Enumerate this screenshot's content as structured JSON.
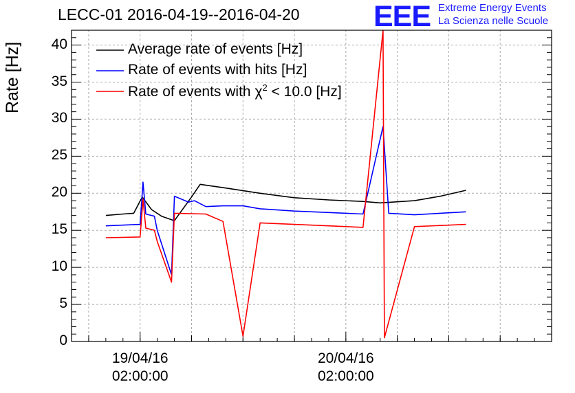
{
  "chart_data": {
    "type": "line",
    "title": "LECC-01 2016-04-19--2016-04-20",
    "ylabel": "Rate [Hz]",
    "xlabel": "",
    "ylim": [
      0,
      42
    ],
    "y_ticks": [
      "0",
      "5",
      "10",
      "15",
      "20",
      "25",
      "30",
      "35",
      "40"
    ],
    "x_ticks": [
      {
        "date": "19/04/16",
        "time": "02:00:00"
      },
      {
        "date": "20/04/16",
        "time": "02:00:00"
      }
    ],
    "x_range": [
      "2016-04-18 18:00",
      "2016-04-21 02:00"
    ],
    "grid": true,
    "legend_position": "top-left",
    "series": [
      {
        "name": "Average rate of events [Hz]",
        "color": "#000000",
        "points": [
          [
            "2016-04-18 22:00",
            17.0
          ],
          [
            "2016-04-19 00:00",
            17.2
          ],
          [
            "2016-04-19 01:15",
            17.3
          ],
          [
            "2016-04-19 02:15",
            19.5
          ],
          [
            "2016-04-19 03:20",
            17.8
          ],
          [
            "2016-04-19 04:30",
            16.9
          ],
          [
            "2016-04-19 06:00",
            16.3
          ],
          [
            "2016-04-19 08:00",
            19.5
          ],
          [
            "2016-04-19 09:00",
            21.2
          ],
          [
            "2016-04-19 12:00",
            20.7
          ],
          [
            "2016-04-19 16:00",
            20.0
          ],
          [
            "2016-04-19 20:00",
            19.4
          ],
          [
            "2016-04-20 00:00",
            19.1
          ],
          [
            "2016-04-20 04:00",
            18.9
          ],
          [
            "2016-04-20 06:00",
            18.7
          ],
          [
            "2016-04-20 10:00",
            19.0
          ],
          [
            "2016-04-20 13:00",
            19.6
          ],
          [
            "2016-04-20 16:00",
            20.4
          ]
        ]
      },
      {
        "name": "Rate of events with hits [Hz]",
        "color": "#0000ff",
        "points": [
          [
            "2016-04-18 22:00",
            15.6
          ],
          [
            "2016-04-19 02:00",
            15.8
          ],
          [
            "2016-04-19 02:20",
            21.5
          ],
          [
            "2016-04-19 02:40",
            17.2
          ],
          [
            "2016-04-19 03:40",
            16.9
          ],
          [
            "2016-04-19 04:00",
            15.0
          ],
          [
            "2016-04-19 05:40",
            9.0
          ],
          [
            "2016-04-19 06:00",
            19.6
          ],
          [
            "2016-04-19 07:40",
            18.8
          ],
          [
            "2016-04-19 08:20",
            19.0
          ],
          [
            "2016-04-19 09:40",
            18.2
          ],
          [
            "2016-04-19 11:40",
            18.3
          ],
          [
            "2016-04-19 14:00",
            18.3
          ],
          [
            "2016-04-19 16:00",
            17.9
          ],
          [
            "2016-04-19 20:00",
            17.6
          ],
          [
            "2016-04-20 00:00",
            17.4
          ],
          [
            "2016-04-20 04:00",
            17.2
          ],
          [
            "2016-04-20 06:20",
            29.0
          ],
          [
            "2016-04-20 07:00",
            17.3
          ],
          [
            "2016-04-20 10:00",
            17.1
          ],
          [
            "2016-04-20 16:00",
            17.5
          ]
        ]
      },
      {
        "name": "Rate of events with χ² < 10.0 [Hz]",
        "color": "#ff0000",
        "points": [
          [
            "2016-04-18 22:00",
            14.0
          ],
          [
            "2016-04-19 02:00",
            14.1
          ],
          [
            "2016-04-19 02:20",
            19.2
          ],
          [
            "2016-04-19 02:40",
            15.3
          ],
          [
            "2016-04-19 03:40",
            15.0
          ],
          [
            "2016-04-19 04:00",
            13.5
          ],
          [
            "2016-04-19 05:40",
            8.0
          ],
          [
            "2016-04-19 06:00",
            17.3
          ],
          [
            "2016-04-19 09:40",
            17.2
          ],
          [
            "2016-04-19 11:40",
            16.2
          ],
          [
            "2016-04-19 14:00",
            0.7
          ],
          [
            "2016-04-19 16:00",
            16.0
          ],
          [
            "2016-04-19 20:00",
            15.8
          ],
          [
            "2016-04-20 00:00",
            15.6
          ],
          [
            "2016-04-20 04:00",
            15.4
          ],
          [
            "2016-04-20 06:20",
            42.0
          ],
          [
            "2016-04-20 06:30",
            0.5
          ],
          [
            "2016-04-20 10:00",
            15.5
          ],
          [
            "2016-04-20 16:00",
            15.8
          ]
        ]
      }
    ]
  },
  "logo": {
    "mark": "EEE",
    "line1": "Extreme Energy Events",
    "line2": "La Scienza nelle Scuole"
  },
  "legend_text": {
    "s3_pre": "Rate of events with ",
    "s3_chi": "χ",
    "s3_sup": "2",
    "s3_post": " < 10.0 [Hz]"
  }
}
